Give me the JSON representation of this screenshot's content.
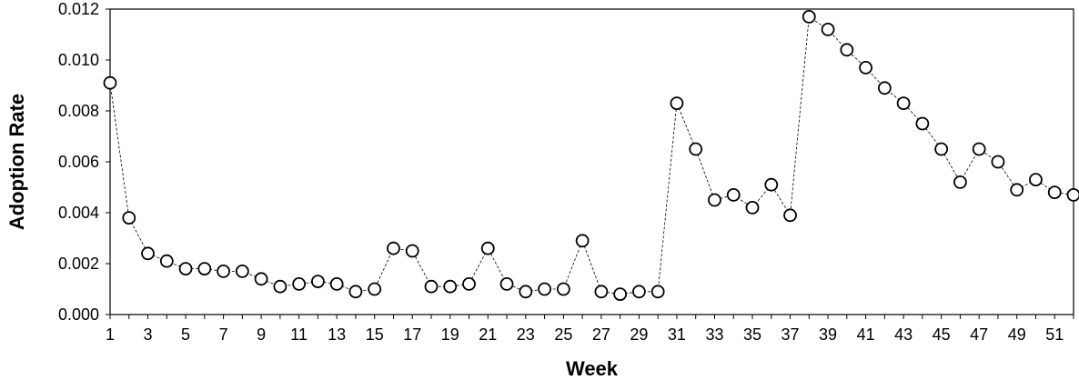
{
  "chart_data": {
    "type": "line",
    "xlabel": "Week",
    "ylabel": "Adoption Rate",
    "xlim": [
      1,
      52
    ],
    "ylim": [
      0.0,
      0.012
    ],
    "yticks": [
      "0.000",
      "0.002",
      "0.004",
      "0.006",
      "0.008",
      "0.010",
      "0.012"
    ],
    "xticks": [
      "1",
      "3",
      "5",
      "7",
      "9",
      "11",
      "13",
      "15",
      "17",
      "19",
      "21",
      "23",
      "25",
      "27",
      "29",
      "31",
      "33",
      "35",
      "37",
      "39",
      "41",
      "43",
      "45",
      "47",
      "49",
      "51"
    ],
    "grid": false,
    "marker": "open-circle",
    "line_style": "dashed",
    "series": [
      {
        "x": [
          1,
          2,
          3,
          4,
          5,
          6,
          7,
          8,
          9,
          10,
          11,
          12,
          13,
          14,
          15,
          16,
          17,
          18,
          19,
          20,
          21,
          22,
          23,
          24,
          25,
          26,
          27,
          28,
          29,
          30,
          31,
          32,
          33,
          34,
          35,
          36,
          37,
          38,
          39,
          40,
          41,
          42,
          43,
          44,
          45,
          46,
          47,
          48,
          49,
          50,
          51,
          52
        ],
        "values": [
          0.0091,
          0.0038,
          0.0024,
          0.0021,
          0.0018,
          0.0018,
          0.0017,
          0.0017,
          0.0014,
          0.0011,
          0.0012,
          0.0013,
          0.0012,
          0.0009,
          0.001,
          0.0026,
          0.0025,
          0.0011,
          0.0011,
          0.0012,
          0.0026,
          0.0012,
          0.0009,
          0.001,
          0.001,
          0.0029,
          0.0009,
          0.0008,
          0.0009,
          0.0009,
          0.0083,
          0.0065,
          0.0045,
          0.0047,
          0.0042,
          0.0051,
          0.0039,
          0.0117,
          0.0112,
          0.0104,
          0.0097,
          0.0089,
          0.0083,
          0.0075,
          0.0065,
          0.0052,
          0.0065,
          0.006,
          0.0049,
          0.0053,
          0.0048,
          0.0047
        ]
      }
    ]
  }
}
